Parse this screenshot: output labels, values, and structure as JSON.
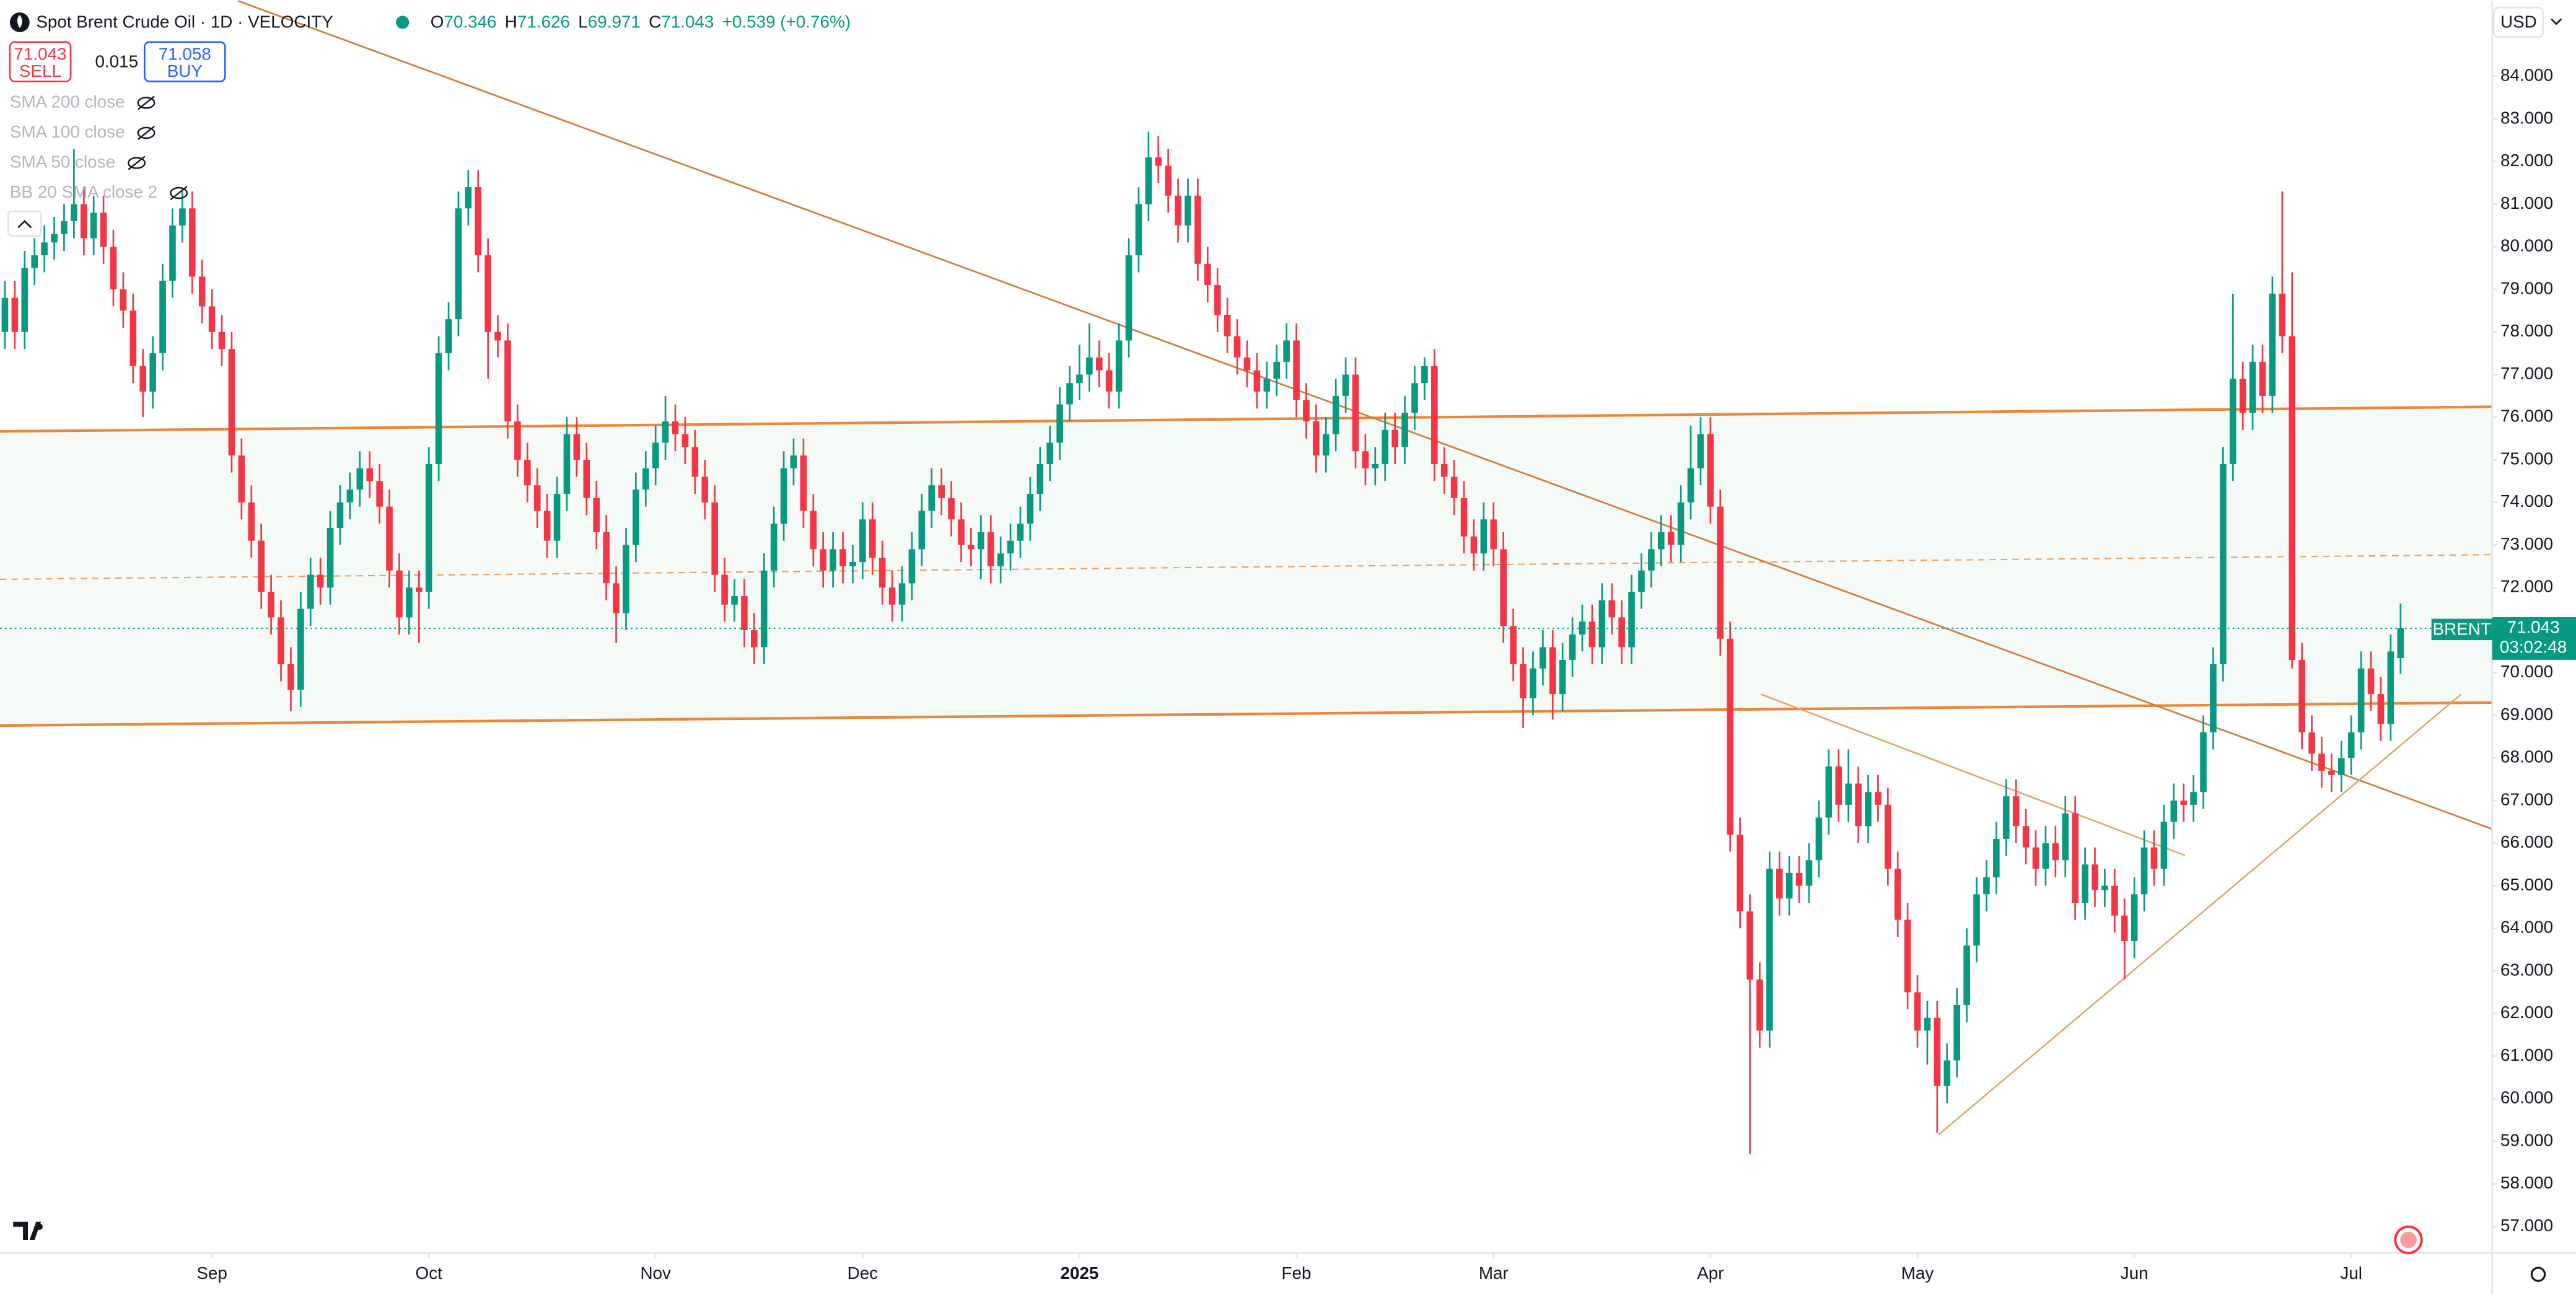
{
  "chart_data": {
    "type": "candlestick",
    "title": "Spot Brent Crude Oil · 1D · VELOCITY",
    "up_color": "#089981",
    "down_color": "#f23645",
    "xlim": [
      -0.5,
      252.3
    ],
    "ylim": [
      56.38,
      85.77
    ],
    "yticks": [
      {
        "value": 57,
        "label": "57.000"
      },
      {
        "value": 58,
        "label": "58.000"
      },
      {
        "value": 59,
        "label": "59.000"
      },
      {
        "value": 60,
        "label": "60.000"
      },
      {
        "value": 61,
        "label": "61.000"
      },
      {
        "value": 62,
        "label": "62.000"
      },
      {
        "value": 63,
        "label": "63.000"
      },
      {
        "value": 64,
        "label": "64.000"
      },
      {
        "value": 65,
        "label": "65.000"
      },
      {
        "value": 66,
        "label": "66.000"
      },
      {
        "value": 67,
        "label": "67.000"
      },
      {
        "value": 68,
        "label": "68.000"
      },
      {
        "value": 69,
        "label": "69.000"
      },
      {
        "value": 70,
        "label": "70.000"
      },
      {
        "value": 71,
        "label": "71.000"
      },
      {
        "value": 72,
        "label": "72.000"
      },
      {
        "value": 73,
        "label": "73.000"
      },
      {
        "value": 74,
        "label": "74.000"
      },
      {
        "value": 75,
        "label": "75.000"
      },
      {
        "value": 76,
        "label": "76.000"
      },
      {
        "value": 77,
        "label": "77.000"
      },
      {
        "value": 78,
        "label": "78.000"
      },
      {
        "value": 79,
        "label": "79.000"
      },
      {
        "value": 80,
        "label": "80.000"
      },
      {
        "value": 81,
        "label": "81.000"
      },
      {
        "value": 82,
        "label": "82.000"
      },
      {
        "value": 83,
        "label": "83.000"
      },
      {
        "value": 84,
        "label": "84.000"
      }
    ],
    "xticks": [
      {
        "value": 21,
        "label": "Sep"
      },
      {
        "value": 43,
        "label": "Oct"
      },
      {
        "value": 66,
        "label": "Nov"
      },
      {
        "value": 87,
        "label": "Dec"
      },
      {
        "value": 109,
        "label": "2025"
      },
      {
        "value": 131,
        "label": "Feb"
      },
      {
        "value": 151,
        "label": "Mar"
      },
      {
        "value": 173,
        "label": "Apr"
      },
      {
        "value": 194,
        "label": "May"
      },
      {
        "value": 216,
        "label": "Jun"
      },
      {
        "value": 238,
        "label": "Jul"
      }
    ],
    "open": [
      78.0,
      78.8,
      78.0,
      79.5,
      79.8,
      80.1,
      80.3,
      80.6,
      81.0,
      80.2,
      80.8,
      80.0,
      79.0,
      78.5,
      77.2,
      76.6,
      77.5,
      79.2,
      80.5,
      80.9,
      79.3,
      78.6,
      78.0,
      77.6,
      75.1,
      74.0,
      73.1,
      71.9,
      71.3,
      70.2,
      69.6,
      71.5,
      72.3,
      72.0,
      73.4,
      74.0,
      74.3,
      74.8,
      74.5,
      73.9,
      72.4,
      71.3,
      72.0,
      71.9,
      74.9,
      77.5,
      78.3,
      80.9,
      81.4,
      79.8,
      78.0,
      77.8,
      75.9,
      75.0,
      74.4,
      73.8,
      73.1,
      74.2,
      75.6,
      75.0,
      74.1,
      73.3,
      72.1,
      71.4,
      73.0,
      74.3,
      74.8,
      75.4,
      75.9,
      75.6,
      75.3,
      74.6,
      74.0,
      72.3,
      71.6,
      71.8,
      71.0,
      70.6,
      72.4,
      73.5,
      74.8,
      75.1,
      73.8,
      72.9,
      72.4,
      72.9,
      72.5,
      72.6,
      73.6,
      72.7,
      72.0,
      71.6,
      72.1,
      72.9,
      73.8,
      74.4,
      74.1,
      73.6,
      73.0,
      72.9,
      73.3,
      72.5,
      72.8,
      73.1,
      73.5,
      74.2,
      74.9,
      75.4,
      76.3,
      76.8,
      77.0,
      77.4,
      77.1,
      76.6,
      77.8,
      79.8,
      81.0,
      82.1,
      81.9,
      81.2,
      80.5,
      81.2,
      79.6,
      79.1,
      78.4,
      77.9,
      77.4,
      77.1,
      76.6,
      76.9,
      77.3,
      77.8,
      76.4,
      75.9,
      75.1,
      75.6,
      76.5,
      77.0,
      75.2,
      74.8,
      74.9,
      75.7,
      75.3,
      76.1,
      76.8,
      77.2,
      74.9,
      74.6,
      74.1,
      73.2,
      72.8,
      73.6,
      72.9,
      71.1,
      70.2,
      69.4,
      70.1,
      70.6,
      69.5,
      70.3,
      70.9,
      71.2,
      70.6,
      71.7,
      71.3,
      70.6,
      71.9,
      72.4,
      72.9,
      73.3,
      73.0,
      74.0,
      74.8,
      75.6,
      73.9,
      70.8,
      66.2,
      64.4,
      62.8,
      61.6,
      65.4,
      64.7,
      65.3,
      65.0,
      65.6,
      66.6,
      67.8,
      66.9,
      67.4,
      66.4,
      67.2,
      66.9,
      65.4,
      64.2,
      62.5,
      61.6,
      61.9,
      60.3,
      60.9,
      62.2,
      63.6,
      64.8,
      65.2,
      66.1,
      67.1,
      66.4,
      65.9,
      65.4,
      66.0,
      65.6,
      66.7,
      64.6,
      65.5,
      64.9,
      65.0,
      64.3,
      63.7,
      64.8,
      65.9,
      65.4,
      66.5,
      67.0,
      66.9,
      67.2,
      68.6,
      70.2,
      74.9,
      76.9,
      76.1,
      77.3,
      76.5,
      78.9,
      77.9,
      70.3,
      68.6,
      68.1,
      67.7,
      67.6,
      68.0,
      68.6,
      70.1,
      69.5,
      68.8,
      70.346
    ],
    "high": [
      79.2,
      79.2,
      79.9,
      80.2,
      80.5,
      80.7,
      81.0,
      82.3,
      81.4,
      81.2,
      81.2,
      80.4,
      79.4,
      78.9,
      77.6,
      77.9,
      79.6,
      80.9,
      81.3,
      81.3,
      79.7,
      79.0,
      78.4,
      78.0,
      75.5,
      74.4,
      73.5,
      72.3,
      71.7,
      70.6,
      71.9,
      72.7,
      72.7,
      73.8,
      74.4,
      74.7,
      75.2,
      75.2,
      74.9,
      74.3,
      72.8,
      72.4,
      72.4,
      75.3,
      77.9,
      78.7,
      81.3,
      81.8,
      81.8,
      80.2,
      78.4,
      78.2,
      76.3,
      75.4,
      74.8,
      74.2,
      74.6,
      76.0,
      76.0,
      75.4,
      74.5,
      73.7,
      72.5,
      73.4,
      74.7,
      75.2,
      75.8,
      76.5,
      76.3,
      76.0,
      75.7,
      75.0,
      74.4,
      72.7,
      72.2,
      72.2,
      71.4,
      72.8,
      73.9,
      75.2,
      75.5,
      75.5,
      74.2,
      73.3,
      73.3,
      73.3,
      73.0,
      74.0,
      74.0,
      73.1,
      72.4,
      72.5,
      73.3,
      74.2,
      74.8,
      74.8,
      74.5,
      74.0,
      73.4,
      73.7,
      73.7,
      73.2,
      73.5,
      73.9,
      74.6,
      75.3,
      75.8,
      76.7,
      77.2,
      77.7,
      78.2,
      77.8,
      77.5,
      78.2,
      80.2,
      81.4,
      82.7,
      82.6,
      82.3,
      81.6,
      81.6,
      81.6,
      80.0,
      79.5,
      78.8,
      78.3,
      77.8,
      77.5,
      77.3,
      77.7,
      78.2,
      78.2,
      76.8,
      76.3,
      76.0,
      76.9,
      77.4,
      77.4,
      75.6,
      75.3,
      76.1,
      76.1,
      76.5,
      77.2,
      77.4,
      77.6,
      75.3,
      75.0,
      74.5,
      73.6,
      74.0,
      74.0,
      73.3,
      71.5,
      70.6,
      70.5,
      71.0,
      71.0,
      70.7,
      71.3,
      71.6,
      71.6,
      72.1,
      72.1,
      71.7,
      72.3,
      72.8,
      73.3,
      73.7,
      73.7,
      74.4,
      75.8,
      76.0,
      76.0,
      74.3,
      71.2,
      66.6,
      64.8,
      63.2,
      65.8,
      65.8,
      65.7,
      65.7,
      66.0,
      67.0,
      68.2,
      68.2,
      68.2,
      67.8,
      67.6,
      67.6,
      67.3,
      65.8,
      64.6,
      62.9,
      62.3,
      62.3,
      61.3,
      62.6,
      64.0,
      65.2,
      65.6,
      66.5,
      67.5,
      67.5,
      66.8,
      66.3,
      66.4,
      66.4,
      67.1,
      67.1,
      65.9,
      65.9,
      65.4,
      65.4,
      64.7,
      65.2,
      66.3,
      66.3,
      66.9,
      67.4,
      67.4,
      67.6,
      69.0,
      70.6,
      75.3,
      78.9,
      77.3,
      77.7,
      77.7,
      79.3,
      81.3,
      79.4,
      70.7,
      69.0,
      68.5,
      68.1,
      68.4,
      69.0,
      70.5,
      70.5,
      69.9,
      70.9,
      71.626
    ],
    "low": [
      77.6,
      77.6,
      77.6,
      79.1,
      79.4,
      79.7,
      79.9,
      80.2,
      79.8,
      79.8,
      79.6,
      78.6,
      78.1,
      76.8,
      76.0,
      76.2,
      77.1,
      78.8,
      80.1,
      78.9,
      78.2,
      77.6,
      77.2,
      74.7,
      73.6,
      72.7,
      71.5,
      70.9,
      69.8,
      69.1,
      69.2,
      71.1,
      71.6,
      71.6,
      73.0,
      73.6,
      73.9,
      74.1,
      73.5,
      72.0,
      70.9,
      70.9,
      70.7,
      71.5,
      74.5,
      77.1,
      77.9,
      80.5,
      79.4,
      76.9,
      77.4,
      75.5,
      74.6,
      74.0,
      73.4,
      72.7,
      72.7,
      73.8,
      74.6,
      73.7,
      72.9,
      71.7,
      70.7,
      71.0,
      72.6,
      73.9,
      74.4,
      75.0,
      75.2,
      74.9,
      74.2,
      73.6,
      71.9,
      71.2,
      71.2,
      70.6,
      70.2,
      70.2,
      72.0,
      73.1,
      74.4,
      73.4,
      72.5,
      72.0,
      72.0,
      72.1,
      72.1,
      72.2,
      72.3,
      71.6,
      71.2,
      71.2,
      71.7,
      72.5,
      73.4,
      73.7,
      73.2,
      72.6,
      72.5,
      72.2,
      72.1,
      72.1,
      72.4,
      72.7,
      73.1,
      73.8,
      74.5,
      75.0,
      75.9,
      76.4,
      76.6,
      76.7,
      76.2,
      76.2,
      77.4,
      79.4,
      80.6,
      81.5,
      80.8,
      80.1,
      80.1,
      79.2,
      78.7,
      78.0,
      77.5,
      77.0,
      76.7,
      76.2,
      76.2,
      76.5,
      76.9,
      76.0,
      75.5,
      74.7,
      74.7,
      75.2,
      76.1,
      74.8,
      74.4,
      74.4,
      74.5,
      74.9,
      74.9,
      75.7,
      76.4,
      74.5,
      74.2,
      73.7,
      72.8,
      72.4,
      72.4,
      72.5,
      70.7,
      69.8,
      68.7,
      69.0,
      69.7,
      68.9,
      69.1,
      69.9,
      70.5,
      70.2,
      70.2,
      70.9,
      70.2,
      70.2,
      71.5,
      72.0,
      72.5,
      72.6,
      72.6,
      73.6,
      74.4,
      73.5,
      70.4,
      65.8,
      64.0,
      58.7,
      61.2,
      61.2,
      64.3,
      64.3,
      64.6,
      64.6,
      65.2,
      66.2,
      66.5,
      66.5,
      66.0,
      66.0,
      66.5,
      65.0,
      63.8,
      62.1,
      61.2,
      60.8,
      59.2,
      59.9,
      60.5,
      61.8,
      63.2,
      64.4,
      64.8,
      65.7,
      66.0,
      65.5,
      65.0,
      65.0,
      65.2,
      65.2,
      64.2,
      64.2,
      64.5,
      64.5,
      63.9,
      62.8,
      63.3,
      64.4,
      65.0,
      65.0,
      66.1,
      66.5,
      66.5,
      66.8,
      68.2,
      69.8,
      74.5,
      75.7,
      75.7,
      76.1,
      76.1,
      77.5,
      70.1,
      68.2,
      67.7,
      67.3,
      67.2,
      67.2,
      67.6,
      68.2,
      69.1,
      68.4,
      68.4,
      69.971
    ],
    "close": [
      78.8,
      78.0,
      79.5,
      79.8,
      80.1,
      80.3,
      80.6,
      81.0,
      80.2,
      80.8,
      80.0,
      79.0,
      78.5,
      77.2,
      76.6,
      77.5,
      79.2,
      80.5,
      80.9,
      79.3,
      78.6,
      78.0,
      77.6,
      75.1,
      74.0,
      73.1,
      71.9,
      71.3,
      70.2,
      69.6,
      71.5,
      72.3,
      72.0,
      73.4,
      74.0,
      74.3,
      74.8,
      74.5,
      73.9,
      72.4,
      71.3,
      72.0,
      71.9,
      74.9,
      77.5,
      78.3,
      80.9,
      81.4,
      79.8,
      78.0,
      77.8,
      75.9,
      75.0,
      74.4,
      73.8,
      73.1,
      74.2,
      75.6,
      75.0,
      74.1,
      73.3,
      72.1,
      71.4,
      73.0,
      74.3,
      74.8,
      75.4,
      75.9,
      75.6,
      75.3,
      74.6,
      74.0,
      72.3,
      71.6,
      71.8,
      71.0,
      70.6,
      72.4,
      73.5,
      74.8,
      75.1,
      73.8,
      72.9,
      72.4,
      72.9,
      72.5,
      72.6,
      73.6,
      72.7,
      72.0,
      71.6,
      72.1,
      72.9,
      73.8,
      74.4,
      74.1,
      73.6,
      73.0,
      72.9,
      73.3,
      72.5,
      72.8,
      73.1,
      73.5,
      74.2,
      74.9,
      75.4,
      76.3,
      76.8,
      77.0,
      77.4,
      77.1,
      76.6,
      77.8,
      79.8,
      81.0,
      82.1,
      81.9,
      81.2,
      80.5,
      81.2,
      79.6,
      79.1,
      78.4,
      77.9,
      77.4,
      77.1,
      76.6,
      76.9,
      77.3,
      77.8,
      76.4,
      75.9,
      75.1,
      75.6,
      76.5,
      77.0,
      75.2,
      74.8,
      74.9,
      75.7,
      75.3,
      76.1,
      76.8,
      77.2,
      74.9,
      74.6,
      74.1,
      73.2,
      72.8,
      73.6,
      72.9,
      71.1,
      70.2,
      69.4,
      70.1,
      70.6,
      69.5,
      70.3,
      70.9,
      71.2,
      70.6,
      71.7,
      71.3,
      70.6,
      71.9,
      72.4,
      72.9,
      73.3,
      73.0,
      74.0,
      74.8,
      75.6,
      73.9,
      70.8,
      66.2,
      64.4,
      62.8,
      61.6,
      65.4,
      64.7,
      65.3,
      65.0,
      65.6,
      66.6,
      67.8,
      66.9,
      67.4,
      66.4,
      67.2,
      66.9,
      65.4,
      64.2,
      62.5,
      61.6,
      61.9,
      60.3,
      60.9,
      62.2,
      63.6,
      64.8,
      65.2,
      66.1,
      67.1,
      66.4,
      65.9,
      65.4,
      66.0,
      65.6,
      66.7,
      64.6,
      65.5,
      64.9,
      65.0,
      64.3,
      63.7,
      64.8,
      65.9,
      65.4,
      66.5,
      67.0,
      66.9,
      67.2,
      68.6,
      70.2,
      74.9,
      76.9,
      76.1,
      77.3,
      76.5,
      78.9,
      77.9,
      70.3,
      68.6,
      68.1,
      67.7,
      67.6,
      68.0,
      68.6,
      70.1,
      69.5,
      68.8,
      70.5,
      71.043
    ]
  },
  "ui": {
    "change": "+0.539 (+0.76%)",
    "ohlc_labels": [
      "O",
      "H",
      "L",
      "C"
    ],
    "sell": "SELL",
    "buy": "BUY",
    "buy_price": "71.058",
    "spread": "0.015",
    "indicators": [
      "SMA 200 close",
      "SMA 100 close",
      "SMA 50 close",
      "BB 20 SMA close 2"
    ],
    "currency": "USD",
    "symbol_tag": "BRENT",
    "countdown": "03:02:48"
  }
}
